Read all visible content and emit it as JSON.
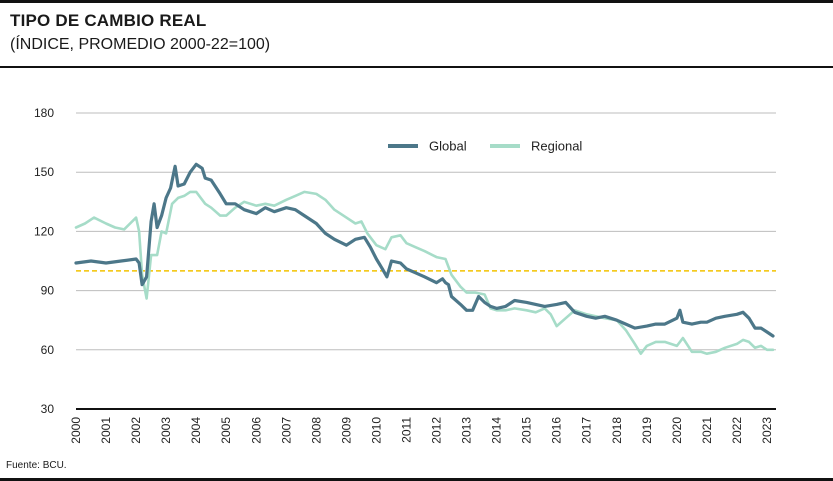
{
  "header": {
    "title": "TIPO DE CAMBIO REAL",
    "subtitle": "(ÍNDICE, PROMEDIO 2000-22=100)"
  },
  "footer": {
    "source": "Fuente: BCU."
  },
  "colors": {
    "global": "#4c7789",
    "regional": "#a6dcc8",
    "reference": "#f2c200",
    "grid": "#bdbdbd",
    "axis": "#111111"
  },
  "chart_data": {
    "type": "line",
    "title": "TIPO DE CAMBIO REAL",
    "subtitle": "(ÍNDICE, PROMEDIO 2000-22=100)",
    "xlabel": "",
    "ylabel": "",
    "xlim": [
      2000,
      2023.3
    ],
    "ylim": [
      30,
      180
    ],
    "yticks": [
      30,
      60,
      90,
      120,
      150,
      180
    ],
    "xticks": [
      "2000",
      "2001",
      "2002",
      "2003",
      "2004",
      "2005",
      "2006",
      "2007",
      "2008",
      "2009",
      "2010",
      "2011",
      "2012",
      "2013",
      "2014",
      "2015",
      "2016",
      "2017",
      "2018",
      "2019",
      "2020",
      "2021",
      "2022",
      "2023"
    ],
    "reference_line": 100,
    "legend": {
      "position": "top-center",
      "entries": [
        "Global",
        "Regional"
      ]
    },
    "series": [
      {
        "name": "Global",
        "points": [
          [
            2000,
            104
          ],
          [
            2000.5,
            105
          ],
          [
            2001,
            104
          ],
          [
            2001.5,
            105
          ],
          [
            2002,
            106
          ],
          [
            2002.1,
            104
          ],
          [
            2002.2,
            93
          ],
          [
            2002.35,
            97
          ],
          [
            2002.5,
            125
          ],
          [
            2002.6,
            134
          ],
          [
            2002.7,
            122
          ],
          [
            2002.85,
            128
          ],
          [
            2003,
            137
          ],
          [
            2003.15,
            142
          ],
          [
            2003.3,
            153
          ],
          [
            2003.4,
            143
          ],
          [
            2003.6,
            144
          ],
          [
            2003.8,
            150
          ],
          [
            2004,
            154
          ],
          [
            2004.2,
            152
          ],
          [
            2004.3,
            147
          ],
          [
            2004.5,
            146
          ],
          [
            2004.8,
            139
          ],
          [
            2005,
            134
          ],
          [
            2005.3,
            134
          ],
          [
            2005.6,
            131
          ],
          [
            2006,
            129
          ],
          [
            2006.3,
            132
          ],
          [
            2006.6,
            130
          ],
          [
            2007,
            132
          ],
          [
            2007.3,
            131
          ],
          [
            2007.6,
            128
          ],
          [
            2008,
            124
          ],
          [
            2008.3,
            119
          ],
          [
            2008.6,
            116
          ],
          [
            2009,
            113
          ],
          [
            2009.3,
            116
          ],
          [
            2009.6,
            117
          ],
          [
            2009.8,
            112
          ],
          [
            2010,
            106
          ],
          [
            2010.2,
            101
          ],
          [
            2010.35,
            97
          ],
          [
            2010.5,
            105
          ],
          [
            2010.8,
            104
          ],
          [
            2011,
            101
          ],
          [
            2011.3,
            99
          ],
          [
            2011.6,
            97
          ],
          [
            2012,
            94
          ],
          [
            2012.2,
            96
          ],
          [
            2012.3,
            94
          ],
          [
            2012.4,
            93
          ],
          [
            2012.5,
            87
          ],
          [
            2012.8,
            83
          ],
          [
            2013,
            80
          ],
          [
            2013.2,
            80
          ],
          [
            2013.4,
            87
          ],
          [
            2013.6,
            84
          ],
          [
            2013.8,
            82
          ],
          [
            2014,
            81
          ],
          [
            2014.3,
            82
          ],
          [
            2014.6,
            85
          ],
          [
            2015,
            84
          ],
          [
            2015.3,
            83
          ],
          [
            2015.6,
            82
          ],
          [
            2016,
            83
          ],
          [
            2016.3,
            84
          ],
          [
            2016.6,
            79
          ],
          [
            2017,
            77
          ],
          [
            2017.3,
            76
          ],
          [
            2017.6,
            77
          ],
          [
            2018,
            75
          ],
          [
            2018.3,
            73
          ],
          [
            2018.6,
            71
          ],
          [
            2019,
            72
          ],
          [
            2019.3,
            73
          ],
          [
            2019.6,
            73
          ],
          [
            2020,
            76
          ],
          [
            2020.1,
            80
          ],
          [
            2020.2,
            74
          ],
          [
            2020.5,
            73
          ],
          [
            2020.8,
            74
          ],
          [
            2021,
            74
          ],
          [
            2021.3,
            76
          ],
          [
            2021.6,
            77
          ],
          [
            2022,
            78
          ],
          [
            2022.2,
            79
          ],
          [
            2022.4,
            76
          ],
          [
            2022.6,
            71
          ],
          [
            2022.8,
            71
          ],
          [
            2023,
            69
          ],
          [
            2023.2,
            67
          ]
        ]
      },
      {
        "name": "Regional",
        "points": [
          [
            2000,
            122
          ],
          [
            2000.3,
            124
          ],
          [
            2000.6,
            127
          ],
          [
            2001,
            124
          ],
          [
            2001.3,
            122
          ],
          [
            2001.6,
            121
          ],
          [
            2002,
            127
          ],
          [
            2002.1,
            120
          ],
          [
            2002.2,
            98
          ],
          [
            2002.35,
            86
          ],
          [
            2002.5,
            108
          ],
          [
            2002.7,
            108
          ],
          [
            2002.85,
            120
          ],
          [
            2003,
            119
          ],
          [
            2003.2,
            134
          ],
          [
            2003.4,
            137
          ],
          [
            2003.6,
            138
          ],
          [
            2003.8,
            140
          ],
          [
            2004,
            140
          ],
          [
            2004.3,
            134
          ],
          [
            2004.5,
            132
          ],
          [
            2004.8,
            128
          ],
          [
            2005,
            128
          ],
          [
            2005.3,
            132
          ],
          [
            2005.6,
            135
          ],
          [
            2006,
            133
          ],
          [
            2006.3,
            134
          ],
          [
            2006.6,
            133
          ],
          [
            2007,
            136
          ],
          [
            2007.3,
            138
          ],
          [
            2007.6,
            140
          ],
          [
            2008,
            139
          ],
          [
            2008.3,
            136
          ],
          [
            2008.6,
            131
          ],
          [
            2009,
            127
          ],
          [
            2009.3,
            124
          ],
          [
            2009.5,
            125
          ],
          [
            2009.7,
            119
          ],
          [
            2010,
            113
          ],
          [
            2010.3,
            111
          ],
          [
            2010.5,
            117
          ],
          [
            2010.8,
            118
          ],
          [
            2011,
            114
          ],
          [
            2011.3,
            112
          ],
          [
            2011.6,
            110
          ],
          [
            2012,
            107
          ],
          [
            2012.3,
            106
          ],
          [
            2012.5,
            98
          ],
          [
            2012.8,
            92
          ],
          [
            2013,
            89
          ],
          [
            2013.3,
            89
          ],
          [
            2013.6,
            88
          ],
          [
            2013.8,
            81
          ],
          [
            2014,
            80
          ],
          [
            2014.3,
            80
          ],
          [
            2014.6,
            81
          ],
          [
            2015,
            80
          ],
          [
            2015.3,
            79
          ],
          [
            2015.6,
            81
          ],
          [
            2015.8,
            78
          ],
          [
            2016,
            72
          ],
          [
            2016.3,
            76
          ],
          [
            2016.6,
            80
          ],
          [
            2017,
            78
          ],
          [
            2017.3,
            77
          ],
          [
            2017.6,
            76
          ],
          [
            2018,
            75
          ],
          [
            2018.3,
            70
          ],
          [
            2018.6,
            63
          ],
          [
            2018.8,
            58
          ],
          [
            2019,
            62
          ],
          [
            2019.3,
            64
          ],
          [
            2019.6,
            64
          ],
          [
            2020,
            62
          ],
          [
            2020.2,
            66
          ],
          [
            2020.5,
            59
          ],
          [
            2020.8,
            59
          ],
          [
            2021,
            58
          ],
          [
            2021.3,
            59
          ],
          [
            2021.6,
            61
          ],
          [
            2022,
            63
          ],
          [
            2022.2,
            65
          ],
          [
            2022.4,
            64
          ],
          [
            2022.6,
            61
          ],
          [
            2022.8,
            62
          ],
          [
            2023,
            60
          ],
          [
            2023.2,
            60
          ]
        ]
      }
    ]
  }
}
